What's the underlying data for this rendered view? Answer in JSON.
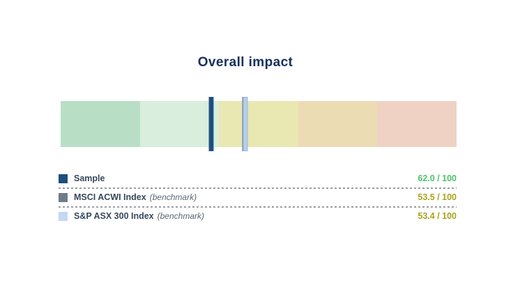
{
  "title": "Overall impact",
  "title_color": "#17305f",
  "chart_data": {
    "type": "bar",
    "subtype": "horizontal-bullet-scale-gauge",
    "title": "Overall impact",
    "orientation": "horizontal",
    "scale": {
      "min": 0,
      "max": 100,
      "high_values_on": "left",
      "gridlines": false,
      "tick_labels": "none"
    },
    "zones": [
      {
        "position": 1,
        "color": "#b9dec6"
      },
      {
        "position": 2,
        "color": "#d9eedd"
      },
      {
        "position": 3,
        "color": "#e9e7b2"
      },
      {
        "position": 4,
        "color": "#ecdcb4"
      },
      {
        "position": 5,
        "color": "#f0d2c4"
      }
    ],
    "series": [
      {
        "name": "Sample",
        "value": 62.0,
        "max": 100,
        "marker_color": "#1d4e7e",
        "marker_border": "#2f5f93",
        "layer": 3
      },
      {
        "name": "MSCI ACWI Index (benchmark)",
        "value": 53.5,
        "max": 100,
        "marker_color": "#6e7c89",
        "marker_border": "#6e7c89",
        "layer": 1
      },
      {
        "name": "S&P ASX 300 Index (benchmark)",
        "value": 53.4,
        "max": 100,
        "marker_color": "#b5cfec",
        "marker_border": "#96b6dc",
        "layer": 2
      }
    ],
    "legend_position": "below"
  },
  "legend": {
    "separator_color": "#989ea4",
    "rows": [
      {
        "swatch_color": "#1d4e7e",
        "label": "Sample",
        "qualifier": "",
        "score": "62.0 / 100",
        "score_color": "#4cc268"
      },
      {
        "swatch_color": "#6e7c89",
        "label": "MSCI ACWI Index",
        "qualifier": "(benchmark)",
        "score": "53.5 / 100",
        "score_color": "#a8a41d"
      },
      {
        "swatch_color": "#c3d9f2",
        "label": "S&P ASX 300 Index",
        "qualifier": "(benchmark)",
        "score": "53.4 / 100",
        "score_color": "#a8a41d"
      }
    ]
  }
}
